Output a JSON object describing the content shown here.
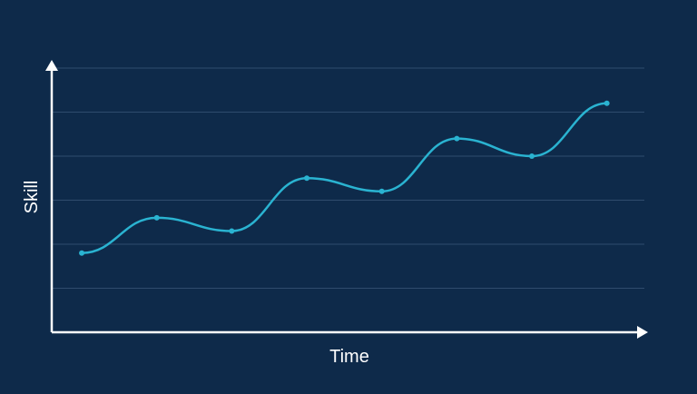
{
  "colors": {
    "background": "#0e2a4a",
    "axis": "#ffffff",
    "grid": "#2f4c6d",
    "line": "#2ab3d1",
    "point": "#2ab3d1"
  },
  "chart_data": {
    "type": "line",
    "title": "",
    "xlabel": "Time",
    "ylabel": "Skill",
    "x": [
      1,
      2,
      3,
      4,
      5,
      6,
      7,
      8
    ],
    "series": [
      {
        "values": [
          1.8,
          2.6,
          2.3,
          3.5,
          3.2,
          4.4,
          4.0,
          5.2
        ]
      }
    ],
    "xlim": [
      0.6,
      8.5
    ],
    "ylim": [
      0,
      6
    ],
    "grid": true,
    "tick_labels": false,
    "smooth": true
  }
}
